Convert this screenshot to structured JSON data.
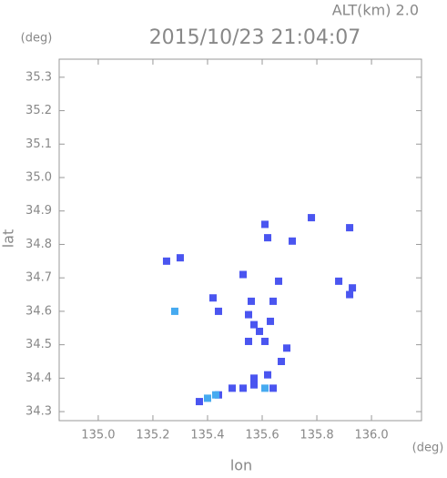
{
  "chart_data": {
    "type": "scatter",
    "title": "2015/10/23 21:04:07",
    "subtitle": "ALT(km) 2.0",
    "x_label": "lon",
    "y_label": "lat",
    "x_unit": "(deg)",
    "y_unit": "(deg)",
    "xlim": [
      134.857,
      136.183
    ],
    "ylim": [
      34.273,
      35.354
    ],
    "xticks": [
      {
        "value": 135,
        "label": "135.0"
      },
      135.2,
      135.4,
      135.6,
      135.8,
      {
        "value": 136,
        "label": "136.0"
      }
    ],
    "yticks": [
      34.3,
      34.4,
      34.5,
      34.6,
      34.7,
      34.8,
      34.9,
      {
        "value": 35,
        "label": "35.0"
      },
      35.1,
      35.2,
      35.3
    ],
    "series": [
      {
        "color": "#4a55f0",
        "x": [
          135.25,
          135.3,
          135.42,
          135.44,
          135.53,
          135.56,
          135.55,
          135.57,
          135.59,
          135.55,
          135.61,
          135.61,
          135.62,
          135.66,
          135.64,
          135.63,
          135.71,
          135.78,
          135.92,
          135.88,
          135.93,
          135.92,
          135.69,
          135.67,
          135.62,
          135.57,
          135.53,
          135.49,
          135.44,
          135.37,
          135.64,
          135.57
        ],
        "values": [
          34.75,
          34.76,
          34.64,
          34.6,
          34.71,
          34.63,
          34.59,
          34.56,
          34.54,
          34.51,
          34.51,
          34.86,
          34.82,
          34.69,
          34.63,
          34.57,
          34.81,
          34.88,
          34.85,
          34.69,
          34.67,
          34.65,
          34.49,
          34.45,
          34.41,
          34.4,
          34.37,
          34.37,
          34.35,
          34.33,
          34.37,
          34.38
        ]
      },
      {
        "color": "#46aaf0",
        "x": [
          135.28,
          135.4,
          135.43,
          135.61
        ],
        "values": [
          34.6,
          34.34,
          34.35,
          34.37
        ]
      }
    ]
  }
}
